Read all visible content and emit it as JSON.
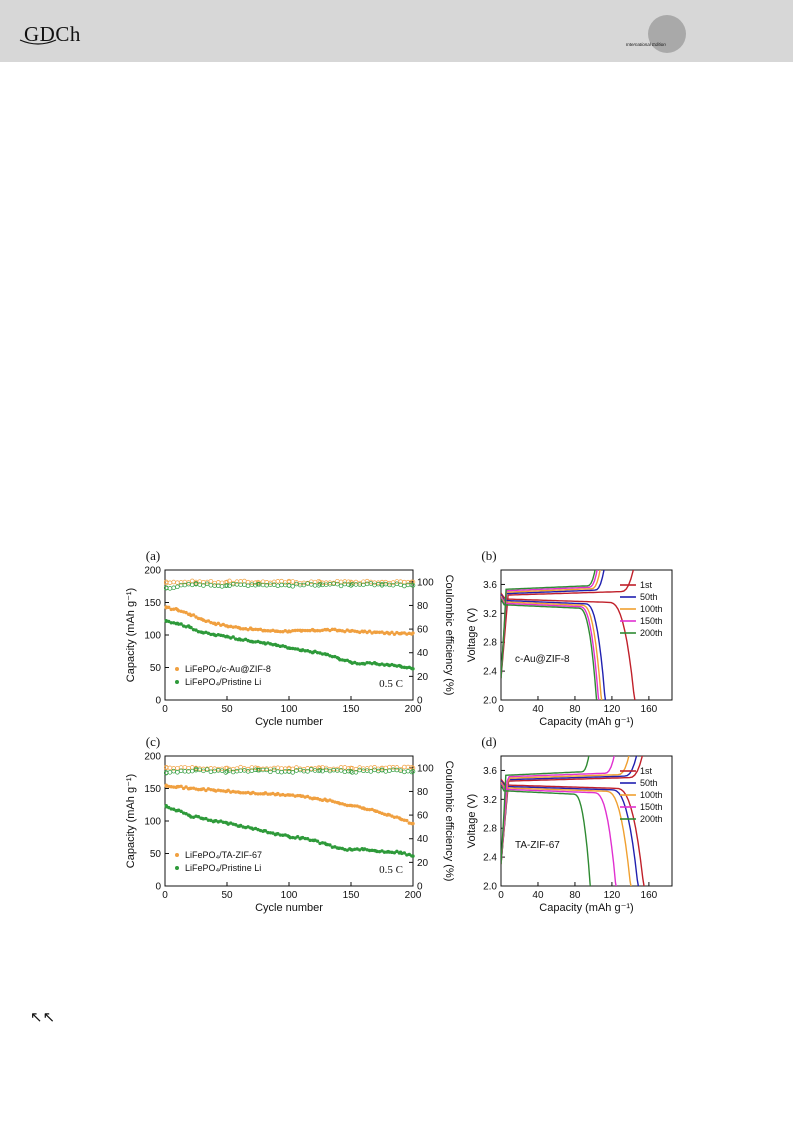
{
  "header": {
    "logo": "GDCh",
    "edition": "International Edition"
  },
  "nav": {
    "icon": "double-up-left-arrow-icon",
    "glyph": "↖↖"
  },
  "chart_data": [
    {
      "panel": "(a)",
      "type": "scatter",
      "xlabel": "Cycle number",
      "ylabel": "Capacity (mAh g⁻¹)",
      "y2label": "Coulombic efficiency (%)",
      "xlim": [
        0,
        200
      ],
      "ylim": [
        0,
        200
      ],
      "y2lim": [
        0,
        110
      ],
      "xticks": [
        0,
        50,
        100,
        150,
        200
      ],
      "yticks": [
        0,
        50,
        100,
        150,
        200
      ],
      "y2ticks": [
        0,
        20,
        40,
        60,
        80,
        100
      ],
      "annotation": "0.5 C",
      "legend_position": "bottom-left",
      "series": [
        {
          "name": "LiFePO₄/c-Au@ZIF-8",
          "color": "#f0a040",
          "axis": "capacity",
          "x": [
            1,
            10,
            20,
            30,
            40,
            50,
            60,
            70,
            80,
            90,
            100,
            110,
            120,
            130,
            140,
            150,
            160,
            170,
            180,
            190,
            200
          ],
          "y": [
            142,
            139,
            132,
            124,
            118,
            114,
            111,
            109,
            107,
            106,
            106,
            106,
            107,
            108,
            107,
            106,
            105,
            104,
            103,
            102,
            103
          ]
        },
        {
          "name": "LiFePO₄/Pristine Li",
          "color": "#2e9a3a",
          "axis": "capacity",
          "x": [
            1,
            10,
            20,
            30,
            40,
            50,
            60,
            70,
            80,
            90,
            100,
            110,
            120,
            130,
            140,
            150,
            160,
            170,
            180,
            190,
            200
          ],
          "y": [
            122,
            118,
            112,
            104,
            100,
            98,
            94,
            90,
            88,
            84,
            80,
            76,
            74,
            70,
            64,
            58,
            56,
            56,
            54,
            52,
            48
          ]
        },
        {
          "name": "",
          "color": "#f0a040",
          "axis": "efficiency",
          "x": [
            1,
            25,
            50,
            75,
            100,
            125,
            150,
            175,
            200
          ],
          "y": [
            100,
            99.8,
            99.8,
            99.7,
            99.8,
            99.7,
            99.8,
            99.7,
            99.8
          ]
        },
        {
          "name": "",
          "color": "#2e9a3a",
          "axis": "efficiency",
          "x": [
            1,
            25,
            50,
            75,
            100,
            125,
            150,
            175,
            200
          ],
          "y": [
            95,
            98,
            97,
            98,
            97,
            98,
            97,
            98,
            97
          ]
        }
      ]
    },
    {
      "panel": "(b)",
      "type": "line",
      "xlabel": "Capacity (mAh g⁻¹)",
      "ylabel": "Voltage (V)",
      "xlim": [
        0,
        185
      ],
      "ylim": [
        2.0,
        3.8
      ],
      "xticks": [
        0,
        40,
        80,
        120,
        160
      ],
      "yticks": [
        2.0,
        2.4,
        2.8,
        3.2,
        3.6
      ],
      "annotation": "c-Au@ZIF-8",
      "legend_position": "top-right",
      "series": [
        {
          "name": "1st",
          "color": "#c0202a",
          "capacity": 146
        },
        {
          "name": "50th",
          "color": "#2020b0",
          "capacity": 114
        },
        {
          "name": "100th",
          "color": "#f0a030",
          "capacity": 110
        },
        {
          "name": "150th",
          "color": "#e030d0",
          "capacity": 107
        },
        {
          "name": "200th",
          "color": "#2e8a32",
          "capacity": 105
        }
      ]
    },
    {
      "panel": "(c)",
      "type": "scatter",
      "xlabel": "Cycle number",
      "ylabel": "Capacity (mAh g⁻¹)",
      "y2label": "Coulombic efficiency (%)",
      "xlim": [
        0,
        200
      ],
      "ylim": [
        0,
        200
      ],
      "y2lim": [
        0,
        110
      ],
      "xticks": [
        0,
        50,
        100,
        150,
        200
      ],
      "yticks": [
        0,
        50,
        100,
        150,
        200
      ],
      "y2ticks": [
        0,
        20,
        40,
        60,
        80,
        100
      ],
      "annotation": "0.5 C",
      "legend_position": "bottom-left",
      "series": [
        {
          "name": "LiFePO₄/TA-ZIF-67",
          "color": "#f0a040",
          "axis": "capacity",
          "x": [
            1,
            10,
            20,
            30,
            40,
            50,
            60,
            70,
            80,
            90,
            100,
            110,
            120,
            130,
            140,
            150,
            160,
            170,
            180,
            190,
            200
          ],
          "y": [
            155,
            153,
            150,
            149,
            147,
            146,
            144,
            143,
            142,
            141,
            140,
            138,
            135,
            132,
            128,
            124,
            120,
            115,
            110,
            103,
            96
          ]
        },
        {
          "name": "LiFePO₄/Pristine Li",
          "color": "#2e9a3a",
          "axis": "capacity",
          "x": [
            1,
            10,
            20,
            30,
            40,
            50,
            60,
            70,
            80,
            90,
            100,
            110,
            120,
            130,
            140,
            150,
            160,
            170,
            180,
            190,
            200
          ],
          "y": [
            122,
            116,
            108,
            104,
            100,
            97,
            92,
            89,
            85,
            80,
            76,
            74,
            70,
            64,
            58,
            56,
            56,
            54,
            53,
            52,
            46
          ]
        },
        {
          "name": "",
          "color": "#f0a040",
          "axis": "efficiency",
          "x": [
            1,
            25,
            50,
            75,
            100,
            125,
            150,
            175,
            200
          ],
          "y": [
            100,
            99.8,
            99.8,
            99.7,
            99.8,
            99.7,
            99.8,
            99.7,
            99.8
          ]
        },
        {
          "name": "",
          "color": "#2e9a3a",
          "axis": "efficiency",
          "x": [
            1,
            25,
            50,
            75,
            100,
            125,
            150,
            175,
            200
          ],
          "y": [
            96,
            98,
            97,
            98,
            97,
            98,
            97,
            98,
            97
          ]
        }
      ]
    },
    {
      "panel": "(d)",
      "type": "line",
      "xlabel": "Capacity (mAh g⁻¹)",
      "ylabel": "Voltage (V)",
      "xlim": [
        0,
        185
      ],
      "ylim": [
        2.0,
        3.8
      ],
      "xticks": [
        0,
        40,
        80,
        120,
        160
      ],
      "yticks": [
        2.0,
        2.4,
        2.8,
        3.2,
        3.6
      ],
      "annotation": "TA-ZIF-67",
      "legend_position": "top-right",
      "series": [
        {
          "name": "1st",
          "color": "#c0202a",
          "capacity": 156
        },
        {
          "name": "50th",
          "color": "#2020b0",
          "capacity": 150
        },
        {
          "name": "100th",
          "color": "#f0a030",
          "capacity": 142
        },
        {
          "name": "150th",
          "color": "#e030d0",
          "capacity": 126
        },
        {
          "name": "200th",
          "color": "#2e8a32",
          "capacity": 98
        }
      ]
    }
  ]
}
